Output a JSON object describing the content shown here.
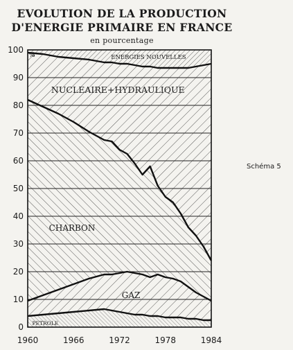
{
  "header": {
    "title_line1": "EVOLUTION DE LA PRODUCTION",
    "title_line2": "D'ENERGIE PRIMAIRE EN FRANCE",
    "subtitle": "en pourcentage"
  },
  "side_note": "Schéma 5",
  "chart_data": {
    "type": "area",
    "stacked": true,
    "unit_marker": "%",
    "x": [
      1960,
      1962,
      1964,
      1966,
      1968,
      1970,
      1971,
      1972,
      1973,
      1974,
      1975,
      1976,
      1977,
      1978,
      1979,
      1980,
      1981,
      1982,
      1983,
      1984
    ],
    "x_ticks": [
      1960,
      1966,
      1972,
      1978,
      1984
    ],
    "y_ticks": [
      0,
      10,
      20,
      30,
      40,
      50,
      60,
      70,
      80,
      90,
      100
    ],
    "ylim": [
      0,
      100
    ],
    "xlim": [
      1960,
      1984
    ],
    "grid": "horizontal",
    "boundaries": [
      {
        "name": "PETROLE",
        "values": [
          4,
          4.5,
          5,
          5.5,
          6,
          6.5,
          6,
          5.5,
          5,
          4.5,
          4.5,
          4,
          4,
          3.5,
          3.5,
          3.5,
          3,
          3,
          2.5,
          2.5
        ]
      },
      {
        "name": "GAZ",
        "values": [
          9.5,
          11.5,
          13.5,
          15.5,
          17.5,
          19,
          19,
          19.5,
          20,
          19.5,
          19,
          18,
          19,
          18,
          17.5,
          16.5,
          14.5,
          12.5,
          11,
          9.5
        ]
      },
      {
        "name": "CHARBON",
        "values": [
          82,
          79.5,
          77,
          74,
          70.5,
          67.5,
          67,
          64,
          62.5,
          59,
          55,
          58,
          51,
          47,
          45,
          41,
          36,
          33,
          29,
          24
        ]
      },
      {
        "name": "NUCLEAIRE+HYDRAULIQUE",
        "values": [
          99,
          98.5,
          97.5,
          97,
          96.5,
          95.5,
          95.5,
          95,
          95,
          94.5,
          94,
          94,
          93.5,
          93.5,
          93.5,
          93.5,
          93.5,
          94,
          94.5,
          95
        ]
      },
      {
        "name": "ENERGIES NOUVELLES",
        "values": [
          100,
          100,
          100,
          100,
          100,
          100,
          100,
          100,
          100,
          100,
          100,
          100,
          100,
          100,
          100,
          100,
          100,
          100,
          100,
          100
        ]
      }
    ],
    "labels": {
      "petrole": "PETROLE",
      "gaz": "GAZ",
      "charbon": "CHARBON",
      "nucleaire": "NUCLEAIRE+HYDRAULIQUE",
      "nouvelles": "ENERGIES NOUVELLES"
    }
  }
}
